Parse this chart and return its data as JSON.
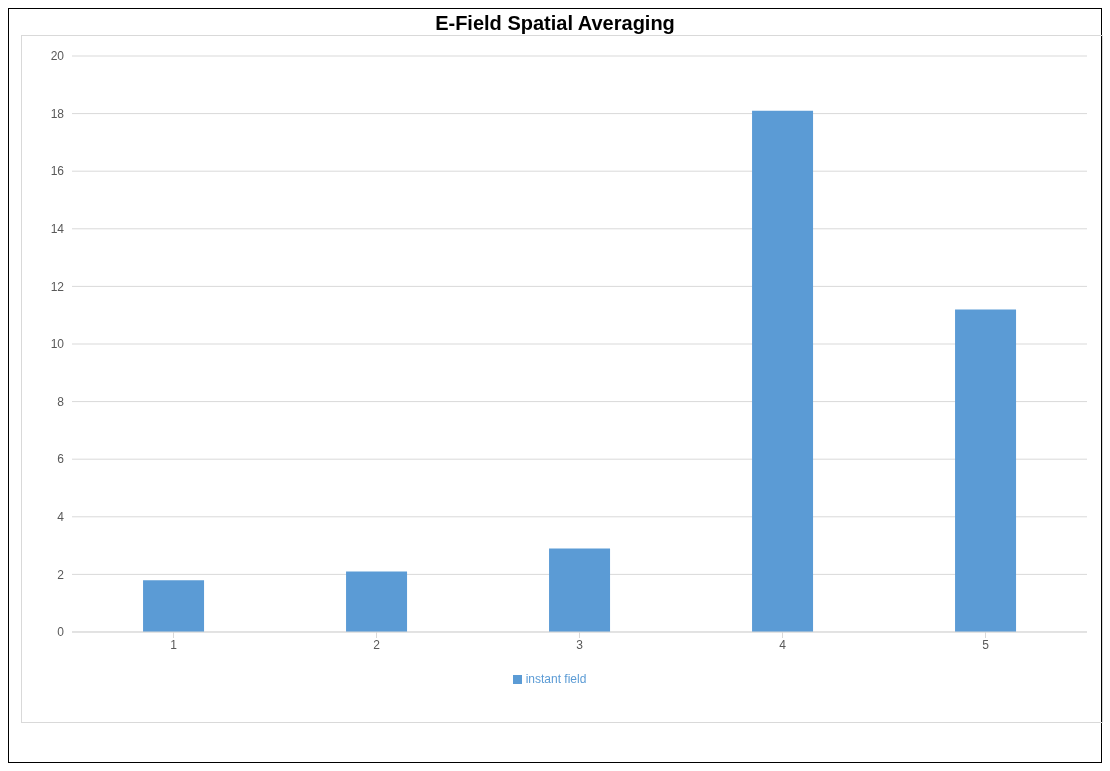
{
  "chart_data": {
    "type": "bar",
    "title": "E-Field Spatial Averaging",
    "categories": [
      "1",
      "2",
      "3",
      "4",
      "5"
    ],
    "series": [
      {
        "name": "instant field",
        "color": "#5b9bd5",
        "values": [
          1.8,
          2.1,
          2.9,
          18.1,
          11.2
        ]
      }
    ],
    "ylim": [
      0,
      20
    ],
    "yticks": [
      0,
      2,
      4,
      6,
      8,
      10,
      12,
      14,
      16,
      18,
      20
    ],
    "grid": "y",
    "legend": "bottom"
  }
}
